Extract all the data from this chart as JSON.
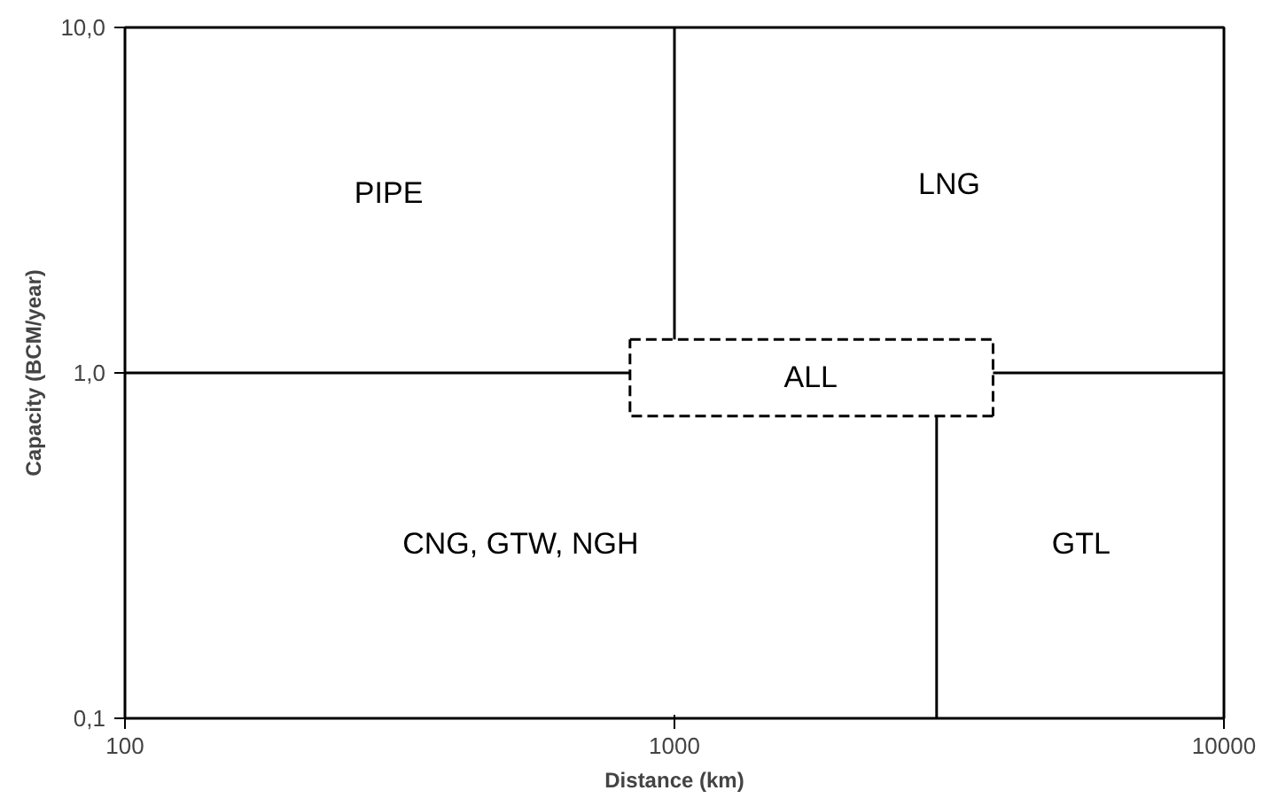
{
  "chart_data": {
    "type": "line",
    "xlabel": "Distance (km)",
    "ylabel": "Capacity (BCM/year)",
    "log": "xy",
    "xlim": [
      100,
      10000
    ],
    "ylim": [
      0.1,
      10
    ],
    "xticks": [
      100,
      1000,
      10000
    ],
    "yticks": [
      {
        "value": 0.1,
        "label": "0,1"
      },
      {
        "value": 1,
        "label": "1,0"
      },
      {
        "value": 10,
        "label": "10,0"
      }
    ],
    "grid": false,
    "marker": "none",
    "line_style": "solid",
    "series": [
      {
        "color": "#000000",
        "x": [
          100,
          830
        ],
        "values": [
          1,
          1
        ]
      },
      {
        "color": "#000000",
        "x": [
          3800,
          10000
        ],
        "values": [
          1,
          1
        ]
      },
      {
        "color": "#000000",
        "x": [
          1000,
          1000
        ],
        "values": [
          1.25,
          10
        ]
      },
      {
        "color": "#000000",
        "x": [
          3000,
          3000
        ],
        "values": [
          0.1,
          0.75
        ]
      },
      {
        "color": "#000000",
        "line_style": "dashed",
        "x": [
          830,
          3800,
          3800
        ],
        "values": [
          1.25,
          1.25,
          0.75
        ]
      },
      {
        "color": "#000000",
        "line_style": "dashed",
        "x": [
          3800,
          830,
          830
        ],
        "values": [
          0.75,
          0.75,
          1.25
        ]
      }
    ],
    "annotations": [
      "PIPE",
      "LNG",
      "ALL",
      "CNG, GTW, NGH",
      "GTL"
    ]
  }
}
